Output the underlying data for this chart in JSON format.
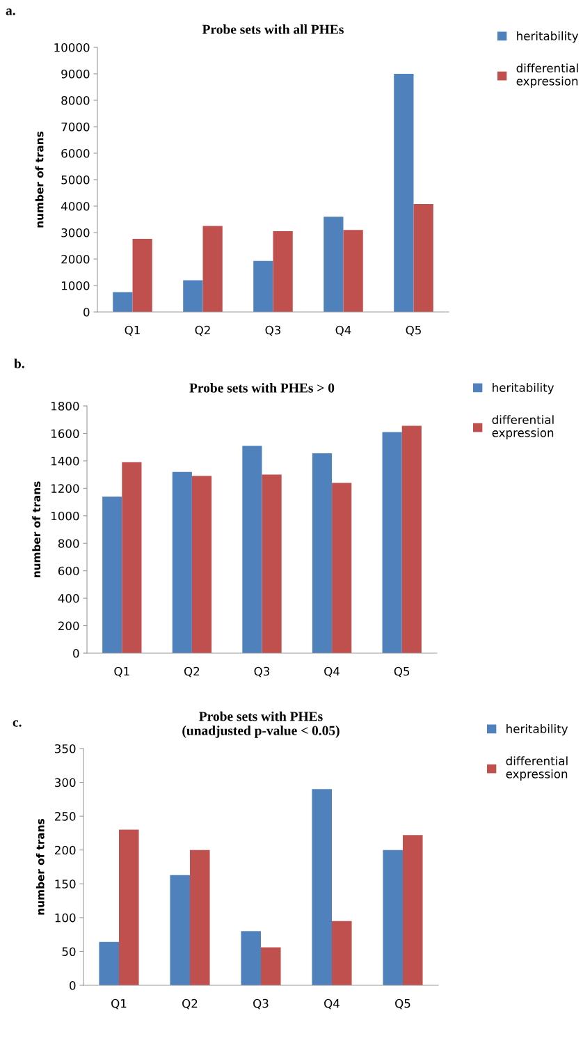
{
  "chart_data": [
    {
      "type": "bar",
      "title": "Probe sets with all PHEs",
      "ylabel": "number of trans",
      "annotations": [
        "a."
      ],
      "categories": [
        "Q1",
        "Q2",
        "Q3",
        "Q4",
        "Q5"
      ],
      "ylim": [
        0,
        10000
      ],
      "yticks": [
        0,
        1000,
        2000,
        3000,
        4000,
        5000,
        6000,
        7000,
        8000,
        9000,
        10000
      ],
      "grid": false,
      "legend": "top right",
      "series": [
        {
          "name": "heritability",
          "color": "#4f81bd",
          "values": [
            750,
            1200,
            1930,
            3600,
            9000
          ]
        },
        {
          "name": "differential expression",
          "color": "#c0504d",
          "values": [
            2760,
            3250,
            3050,
            3100,
            4080
          ]
        }
      ]
    },
    {
      "type": "bar",
      "title": "Probe sets with PHEs > 0",
      "ylabel": "number of trans",
      "annotations": [
        "b."
      ],
      "categories": [
        "Q1",
        "Q2",
        "Q3",
        "Q4",
        "Q5"
      ],
      "ylim": [
        0,
        1800
      ],
      "yticks": [
        0,
        200,
        400,
        600,
        800,
        1000,
        1200,
        1400,
        1600,
        1800
      ],
      "grid": false,
      "legend": "top right",
      "series": [
        {
          "name": "heritability",
          "color": "#4f81bd",
          "values": [
            1140,
            1320,
            1510,
            1455,
            1610
          ]
        },
        {
          "name": "differential expression",
          "color": "#c0504d",
          "values": [
            1390,
            1290,
            1300,
            1240,
            1655
          ]
        }
      ]
    },
    {
      "type": "bar",
      "title": "Probe sets with PHEs\n(unadjusted p-value < 0.05)",
      "ylabel": "number of trans",
      "annotations": [
        "c."
      ],
      "categories": [
        "Q1",
        "Q2",
        "Q3",
        "Q4",
        "Q5"
      ],
      "ylim": [
        0,
        350
      ],
      "yticks": [
        0,
        50,
        100,
        150,
        200,
        250,
        300,
        350
      ],
      "grid": false,
      "legend": "top right",
      "series": [
        {
          "name": "heritability",
          "color": "#4f81bd",
          "values": [
            64,
            163,
            80,
            290,
            200
          ]
        },
        {
          "name": "differential expression",
          "color": "#c0504d",
          "values": [
            230,
            200,
            56,
            95,
            222
          ]
        }
      ]
    }
  ]
}
